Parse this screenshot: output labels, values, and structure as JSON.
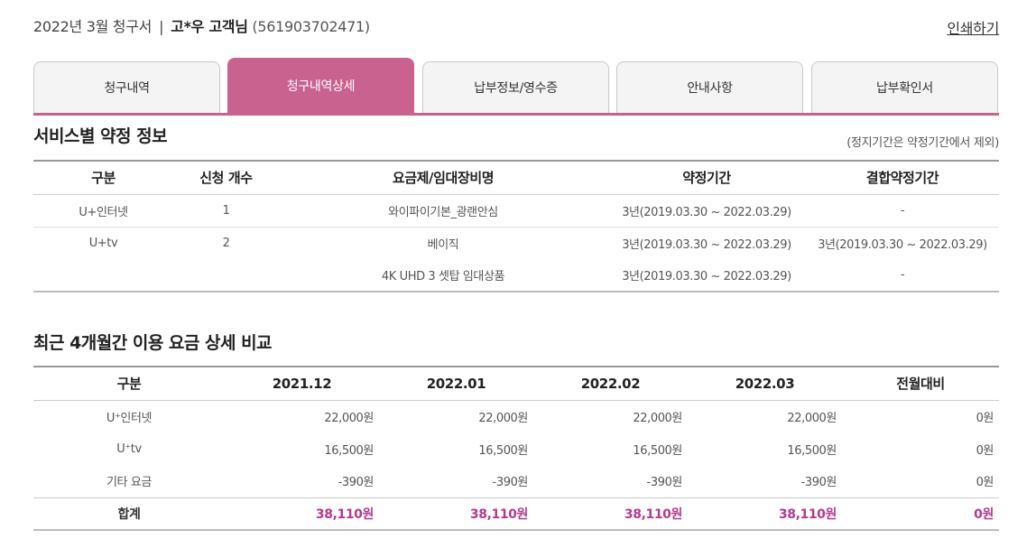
{
  "header": {
    "title": "2022년 3월 청구서",
    "separator": "|",
    "customer": "고*우 고객님",
    "account": "(561903702471)",
    "print_label": "인쇄하기"
  },
  "tabs": [
    {
      "label": "청구내역",
      "active": false
    },
    {
      "label": "청구내역상세",
      "active": true
    },
    {
      "label": "납부정보/영수증",
      "active": false
    },
    {
      "label": "안내사항",
      "active": false
    },
    {
      "label": "납부확인서",
      "active": false
    }
  ],
  "contract": {
    "title": "서비스별 약정 정보",
    "note": "(정지기간은 약정기간에서 제외)",
    "headers": [
      "구분",
      "신청 개수",
      "요금제/임대장비명",
      "약정기간",
      "결합약정기간"
    ],
    "rows": [
      [
        "U+인터넷",
        "1",
        "와이파이기본_광랜안심",
        "3년(2019.03.30 ~ 2022.03.29)",
        "-"
      ],
      [
        "U+tv",
        "2",
        "베이직",
        "3년(2019.03.30 ~ 2022.03.29)",
        "3년(2019.03.30 ~ 2022.03.29)"
      ],
      [
        "",
        "",
        "4K UHD 3 셋탑 임대상품",
        "3년(2019.03.30 ~ 2022.03.29)",
        "-"
      ]
    ]
  },
  "compare": {
    "title": "최근 4개월간 이용 요금 상세 비교",
    "headers": [
      "구분",
      "2021.12",
      "2022.01",
      "2022.02",
      "2022.03",
      "전월대비"
    ],
    "rows": [
      [
        "U⁺인터넷",
        "22,000원",
        "22,000원",
        "22,000원",
        "22,000원",
        "0원"
      ],
      [
        "U⁺tv",
        "16,500원",
        "16,500원",
        "16,500원",
        "16,500원",
        "0원"
      ],
      [
        "기타 요금",
        "-390원",
        "-390원",
        "-390원",
        "-390원",
        "0원"
      ]
    ],
    "total": [
      "합계",
      "38,110원",
      "38,110원",
      "38,110원",
      "38,110원",
      "0원"
    ]
  },
  "colors": {
    "accent": "#c9628f",
    "total_text": "#b23b8d"
  }
}
